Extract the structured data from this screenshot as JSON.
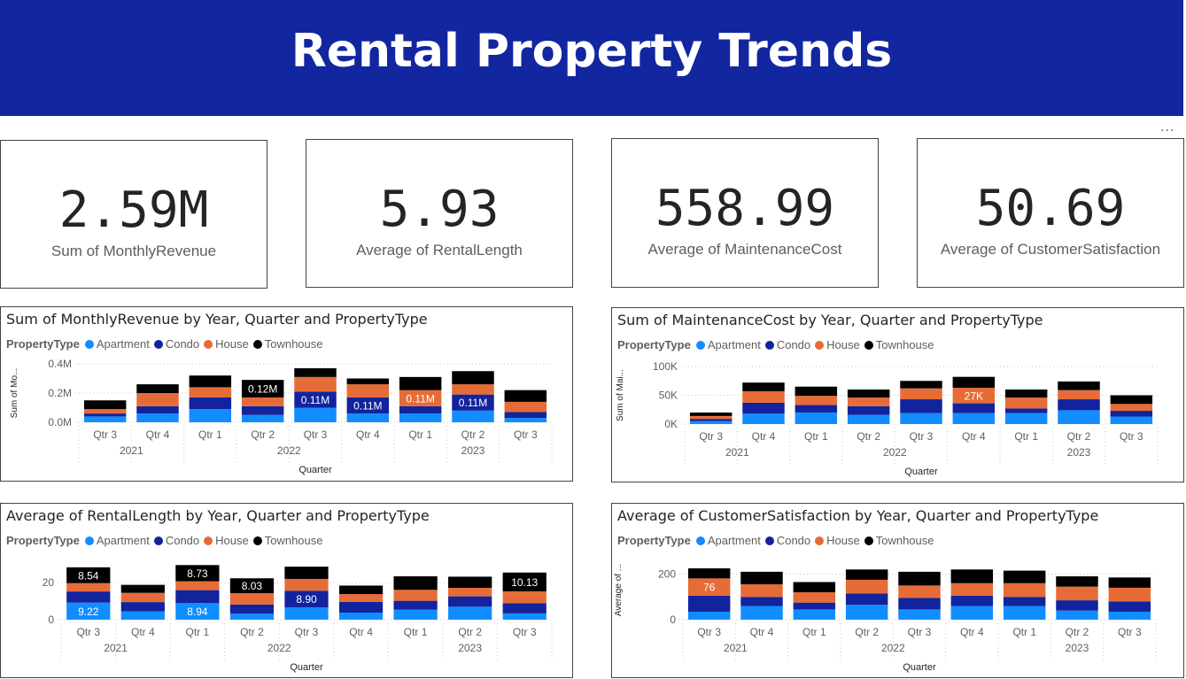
{
  "dashboard": {
    "title": "Rental Property Trends",
    "more_label": "···"
  },
  "cards": [
    {
      "value": "2.59M",
      "label": "Sum of MonthlyRevenue"
    },
    {
      "value": "5.93",
      "label": "Average of RentalLength"
    },
    {
      "value": "558.99",
      "label": "Average of MaintenanceCost"
    },
    {
      "value": "50.69",
      "label": "Average of CustomerSatisfaction"
    }
  ],
  "legend": {
    "title": "PropertyType",
    "items": [
      {
        "name": "Apartment",
        "color": "#118dff"
      },
      {
        "name": "Condo",
        "color": "#12239e"
      },
      {
        "name": "House",
        "color": "#e66c37"
      },
      {
        "name": "Townhouse",
        "color": "#000000"
      }
    ]
  },
  "chart_data": [
    {
      "type": "bar",
      "stacked": true,
      "title": "Sum of MonthlyRevenue by Year, Quarter and PropertyType",
      "xlabel": "Quarter",
      "ylabel": "Sum of Mo...",
      "ylim": [
        0,
        400000
      ],
      "yticks": [
        {
          "v": 0,
          "label": "0.0M"
        },
        {
          "v": 200000,
          "label": "0.2M"
        },
        {
          "v": 400000,
          "label": "0.4M"
        }
      ],
      "categories": [
        "Qtr 3",
        "Qtr 4",
        "Qtr 1",
        "Qtr 2",
        "Qtr 3",
        "Qtr 4",
        "Qtr 1",
        "Qtr 2",
        "Qtr 3"
      ],
      "years": [
        {
          "label": "2021",
          "start": 0,
          "end": 1
        },
        {
          "label": "2022",
          "start": 2,
          "end": 5
        },
        {
          "label": "2023",
          "start": 6,
          "end": 8
        }
      ],
      "series": [
        {
          "name": "Apartment",
          "values": [
            40000,
            60000,
            90000,
            50000,
            100000,
            60000,
            60000,
            80000,
            30000
          ]
        },
        {
          "name": "Condo",
          "values": [
            20000,
            50000,
            80000,
            60000,
            110000,
            110000,
            50000,
            110000,
            40000
          ]
        },
        {
          "name": "House",
          "values": [
            30000,
            90000,
            70000,
            60000,
            100000,
            90000,
            110000,
            70000,
            70000
          ]
        },
        {
          "name": "Townhouse",
          "values": [
            60000,
            60000,
            80000,
            120000,
            60000,
            40000,
            90000,
            90000,
            80000
          ]
        }
      ],
      "data_labels": [
        {
          "cat": 3,
          "series": 3,
          "text": "0.12M"
        },
        {
          "cat": 4,
          "series": 1,
          "text": "0.11M"
        },
        {
          "cat": 5,
          "series": 1,
          "text": "0.11M"
        },
        {
          "cat": 6,
          "series": 2,
          "text": "0.11M"
        },
        {
          "cat": 7,
          "series": 1,
          "text": "0.11M"
        }
      ]
    },
    {
      "type": "bar",
      "stacked": true,
      "title": "Sum of MaintenanceCost by Year, Quarter and PropertyType",
      "xlabel": "Quarter",
      "ylabel": "Sum of Mai...",
      "ylim": [
        0,
        100000
      ],
      "yticks": [
        {
          "v": 0,
          "label": "0K"
        },
        {
          "v": 50000,
          "label": "50K"
        },
        {
          "v": 100000,
          "label": "100K"
        }
      ],
      "categories": [
        "Qtr 3",
        "Qtr 4",
        "Qtr 1",
        "Qtr 2",
        "Qtr 3",
        "Qtr 4",
        "Qtr 1",
        "Qtr 2",
        "Qtr 3"
      ],
      "years": [
        {
          "label": "2021",
          "start": 0,
          "end": 1
        },
        {
          "label": "2022",
          "start": 2,
          "end": 5
        },
        {
          "label": "2023",
          "start": 6,
          "end": 8
        }
      ],
      "series": [
        {
          "name": "Apartment",
          "values": [
            5000,
            18000,
            20000,
            16000,
            19000,
            19000,
            19000,
            24000,
            13000
          ]
        },
        {
          "name": "Condo",
          "values": [
            4000,
            19000,
            13000,
            15000,
            24000,
            17000,
            8000,
            19000,
            10000
          ]
        },
        {
          "name": "House",
          "values": [
            5000,
            20000,
            16000,
            15000,
            19000,
            27000,
            19000,
            16000,
            12000
          ]
        },
        {
          "name": "Townhouse",
          "values": [
            6000,
            15000,
            16000,
            14000,
            13000,
            19000,
            14000,
            15000,
            15000
          ]
        }
      ],
      "data_labels": [
        {
          "cat": 5,
          "series": 2,
          "text": "27K"
        }
      ]
    },
    {
      "type": "bar",
      "stacked": true,
      "title": "Average of RentalLength by Year, Quarter and PropertyType",
      "xlabel": "Quarter",
      "ylabel": "Average of ...",
      "ylim": [
        0,
        32
      ],
      "yticks": [
        {
          "v": 0,
          "label": "0"
        },
        {
          "v": 20,
          "label": "20"
        }
      ],
      "categories": [
        "Qtr 3",
        "Qtr 4",
        "Qtr 1",
        "Qtr 2",
        "Qtr 3",
        "Qtr 4",
        "Qtr 1",
        "Qtr 2",
        "Qtr 3"
      ],
      "years": [
        {
          "label": "2021",
          "start": 0,
          "end": 1
        },
        {
          "label": "2022",
          "start": 2,
          "end": 5
        },
        {
          "label": "2023",
          "start": 6,
          "end": 8
        }
      ],
      "series": [
        {
          "name": "Apartment",
          "values": [
            9.22,
            4.5,
            8.94,
            3.2,
            6.7,
            3.8,
            5.4,
            7.0,
            3.4
          ]
        },
        {
          "name": "Condo",
          "values": [
            6.0,
            5.0,
            7.0,
            5.0,
            8.9,
            5.8,
            4.8,
            5.6,
            5.5
          ]
        },
        {
          "name": "House",
          "values": [
            4.5,
            5.0,
            4.8,
            6.1,
            6.4,
            4.2,
            5.9,
            4.6,
            6.4
          ]
        },
        {
          "name": "Townhouse",
          "values": [
            8.54,
            4.3,
            8.73,
            8.03,
            6.6,
            4.6,
            7.3,
            6.0,
            10.13
          ]
        }
      ],
      "data_labels": [
        {
          "cat": 0,
          "series": 0,
          "text": "9.22"
        },
        {
          "cat": 0,
          "series": 3,
          "text": "8.54"
        },
        {
          "cat": 2,
          "series": 0,
          "text": "8.94"
        },
        {
          "cat": 2,
          "series": 3,
          "text": "8.73"
        },
        {
          "cat": 3,
          "series": 3,
          "text": "8.03"
        },
        {
          "cat": 4,
          "series": 1,
          "text": "8.90"
        },
        {
          "cat": 8,
          "series": 3,
          "text": "10.13"
        }
      ]
    },
    {
      "type": "bar",
      "stacked": true,
      "title": "Average of CustomerSatisfaction by Year, Quarter and PropertyType",
      "xlabel": "Quarter",
      "ylabel": "Average of ...",
      "ylim": [
        0,
        260
      ],
      "yticks": [
        {
          "v": 0,
          "label": "0"
        },
        {
          "v": 200,
          "label": "200"
        }
      ],
      "categories": [
        "Qtr 3",
        "Qtr 4",
        "Qtr 1",
        "Qtr 2",
        "Qtr 3",
        "Qtr 4",
        "Qtr 1",
        "Qtr 2",
        "Qtr 3"
      ],
      "years": [
        {
          "label": "2021",
          "start": 0,
          "end": 1
        },
        {
          "label": "2022",
          "start": 2,
          "end": 5
        },
        {
          "label": "2023",
          "start": 6,
          "end": 8
        }
      ],
      "series": [
        {
          "name": "Apartment",
          "values": [
            35,
            60,
            45,
            65,
            45,
            60,
            60,
            40,
            35
          ]
        },
        {
          "name": "Condo",
          "values": [
            70,
            40,
            30,
            50,
            50,
            45,
            40,
            45,
            45
          ]
        },
        {
          "name": "House",
          "values": [
            76,
            55,
            45,
            60,
            55,
            55,
            60,
            60,
            60
          ]
        },
        {
          "name": "Townhouse",
          "values": [
            44,
            55,
            45,
            45,
            60,
            60,
            55,
            45,
            45
          ]
        }
      ],
      "data_labels": [
        {
          "cat": 0,
          "series": 2,
          "text": "76"
        }
      ]
    }
  ]
}
